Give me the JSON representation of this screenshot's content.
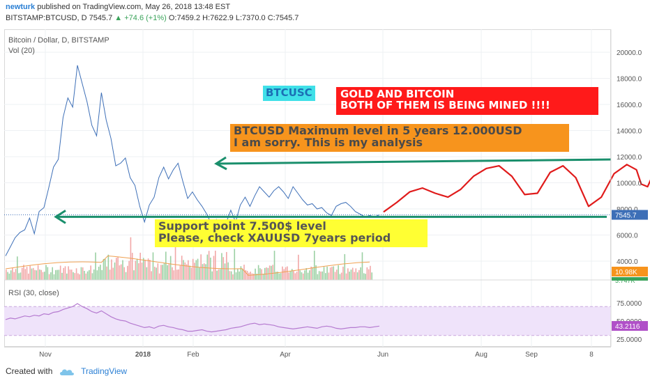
{
  "header": {
    "username": "newturk",
    "published_text": "published on TradingView.com, May 26, 2018 13:48 EST",
    "symbol_line_prefix": "BITSTAMP:BTCUSD, D 7545.7",
    "change_text": "▲ +74.6 (+1%)",
    "ohlc_text": "O:7459.2 H:7622.9 L:7370.0 C:7545.7"
  },
  "chart_labels": {
    "symbol": "Bitcoin / Dollar, D, BITSTAMP",
    "volume": "Vol (20)",
    "rsi": "RSI (30, close)"
  },
  "annotations": {
    "btcusc": "BTCUSC",
    "gold_line1": "GOLD AND BITCOIN",
    "gold_line2": "BOTH OF THEM IS BEING MINED !!!!",
    "max_line1": "BTCUSD Maximum level in 5 years 12.000USD",
    "max_line2": "I am sorry. This is my analysis",
    "support_line1": "Support point 7.500$ level",
    "support_line2": "Please, check XAUUSD 7years period"
  },
  "footer": {
    "created_with": "Created with",
    "brand": "TradingView"
  },
  "colors": {
    "price_line": "#3d6fb7",
    "arrow": "#1a8f6c",
    "projection": "#e01b1b",
    "rsi_line": "#b57ad0",
    "rsi_band": "#efe3fa",
    "volume_up": "#9bd0a3",
    "volume_down": "#f2a7a7",
    "volume_ma": "#f0a050",
    "price_badge": "#3d6fb7",
    "volume_badge": "#f7941d",
    "rsi_badge": "#b050c8"
  },
  "chart_data": {
    "type": "line",
    "x_tick_labels": [
      "Nov",
      "2018",
      "Feb",
      "Apr",
      "Jun",
      "Aug",
      "Sep",
      "8"
    ],
    "y_tick_labels": [
      "4000.0",
      "6000.0",
      "8000.0",
      "10000.0",
      "12000.0",
      "14000.0",
      "16000.0",
      "18000.0",
      "20000.0"
    ],
    "ylim": [
      2800,
      21000
    ],
    "price_series": {
      "name": "BTCUSD",
      "x": [
        0,
        3,
        6,
        9,
        12,
        15,
        18,
        21,
        24,
        27,
        30,
        33,
        36,
        39,
        42,
        45,
        48,
        51,
        54,
        57,
        60,
        63,
        66,
        69,
        72,
        75,
        78,
        81,
        84,
        87,
        90,
        93,
        96,
        99,
        102,
        105,
        108,
        111,
        114,
        117,
        120,
        123,
        126,
        129,
        132,
        135,
        138,
        141,
        144,
        147,
        150,
        153,
        156,
        159,
        162,
        165,
        168,
        171,
        174,
        177,
        180,
        183,
        186,
        189,
        192,
        195,
        198,
        201,
        204,
        207,
        210,
        213,
        216,
        219,
        222,
        225,
        228,
        231,
        234
      ],
      "values": [
        4400,
        5100,
        5800,
        6200,
        6400,
        7300,
        6100,
        7800,
        8100,
        9600,
        11200,
        11800,
        15000,
        16500,
        15800,
        19000,
        17600,
        16200,
        14400,
        13600,
        16900,
        14800,
        13400,
        11300,
        11500,
        11900,
        10400,
        9800,
        8200,
        7000,
        8300,
        8900,
        10400,
        11200,
        10300,
        11000,
        11500,
        10100,
        8800,
        9300,
        8700,
        8200,
        7600,
        6800,
        7200,
        6700,
        6900,
        7900,
        7000,
        8300,
        8900,
        8200,
        9000,
        9700,
        9300,
        8900,
        9400,
        9700,
        9300,
        8800,
        9700,
        9200,
        8700,
        8300,
        8400,
        8000,
        8100,
        7700,
        7500,
        8200,
        8400,
        8500,
        8200,
        7800,
        7600,
        7400,
        7500,
        7400,
        7546
      ]
    },
    "last_price": "7545.7",
    "projection_series": {
      "x": [
        237,
        245,
        253,
        261,
        269,
        277,
        285,
        293,
        301,
        309,
        317,
        325,
        333,
        341,
        349,
        357,
        365,
        373,
        381,
        389,
        395,
        398,
        402,
        406
      ],
      "values": [
        7800,
        8500,
        9300,
        9600,
        9200,
        8900,
        9500,
        10500,
        11100,
        11300,
        10500,
        9100,
        9200,
        10800,
        11300,
        10400,
        8200,
        8900,
        10700,
        11400,
        11000,
        9900,
        9700,
        10800
      ]
    },
    "support_level": 7500,
    "resistance_level": 12000,
    "volume": {
      "last_label": "10.98K",
      "secondary_label": "3.747K"
    },
    "rsi": {
      "ylim": [
        24,
        80
      ],
      "tick_labels": [
        "25.0000",
        "50.0000",
        "75.0000"
      ],
      "band": [
        30,
        70
      ],
      "last_label": "43.2116",
      "values": [
        52,
        54,
        53,
        55,
        57,
        56,
        58,
        57,
        60,
        59,
        62,
        63,
        66,
        68,
        70,
        74,
        70,
        67,
        63,
        61,
        64,
        60,
        56,
        53,
        51,
        50,
        47,
        45,
        43,
        41,
        42,
        40,
        43,
        44,
        42,
        41,
        39,
        38,
        36,
        36,
        37,
        38,
        36,
        35,
        36,
        37,
        38,
        40,
        41,
        42,
        44,
        46,
        47,
        45,
        46,
        45,
        44,
        42,
        41,
        40,
        39,
        40,
        41,
        42,
        41,
        40,
        42,
        43,
        42,
        40,
        39,
        40,
        41,
        41,
        42,
        42,
        41,
        42,
        43
      ]
    }
  }
}
